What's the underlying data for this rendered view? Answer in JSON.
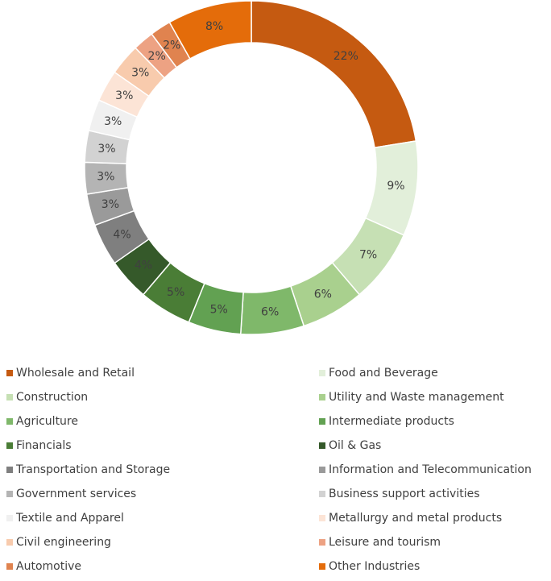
{
  "chart_data": {
    "type": "donut",
    "categories": [
      "Wholesale and Retail",
      "Food and Beverage",
      "Construction",
      "Utility and Waste management",
      "Agriculture",
      "Intermediate products",
      "Financials",
      "Oil & Gas",
      "Transportation and Storage",
      "Information and Telecommunication",
      "Government services",
      "Business support activities",
      "Textile and Apparel",
      "Metallurgy and metal products",
      "Civil engineering",
      "Leisure and tourism",
      "Automotive",
      "Other Industries"
    ],
    "values": [
      22,
      9,
      7,
      6,
      6,
      5,
      5,
      4,
      4,
      3,
      3,
      3,
      3,
      3,
      3,
      2,
      2,
      8
    ],
    "value_labels": [
      "22%",
      "9%",
      "7%",
      "6%",
      "6%",
      "5%",
      "5%",
      "4%",
      "4%",
      "3%",
      "3%",
      "3%",
      "3%",
      "3%",
      "3%",
      "2%",
      "2%",
      "8%"
    ],
    "colors": [
      "#c55a11",
      "#e2efda",
      "#c6e0b4",
      "#a9d08e",
      "#7fb86a",
      "#62a152",
      "#4a7d36",
      "#35592a",
      "#7f7f7f",
      "#9a9a9a",
      "#b4b4b4",
      "#d2d2d2",
      "#f0f0f0",
      "#fce4d6",
      "#f8cbad",
      "#eda283",
      "#e0834f",
      "#e46c0a"
    ],
    "legend": "bottom"
  }
}
